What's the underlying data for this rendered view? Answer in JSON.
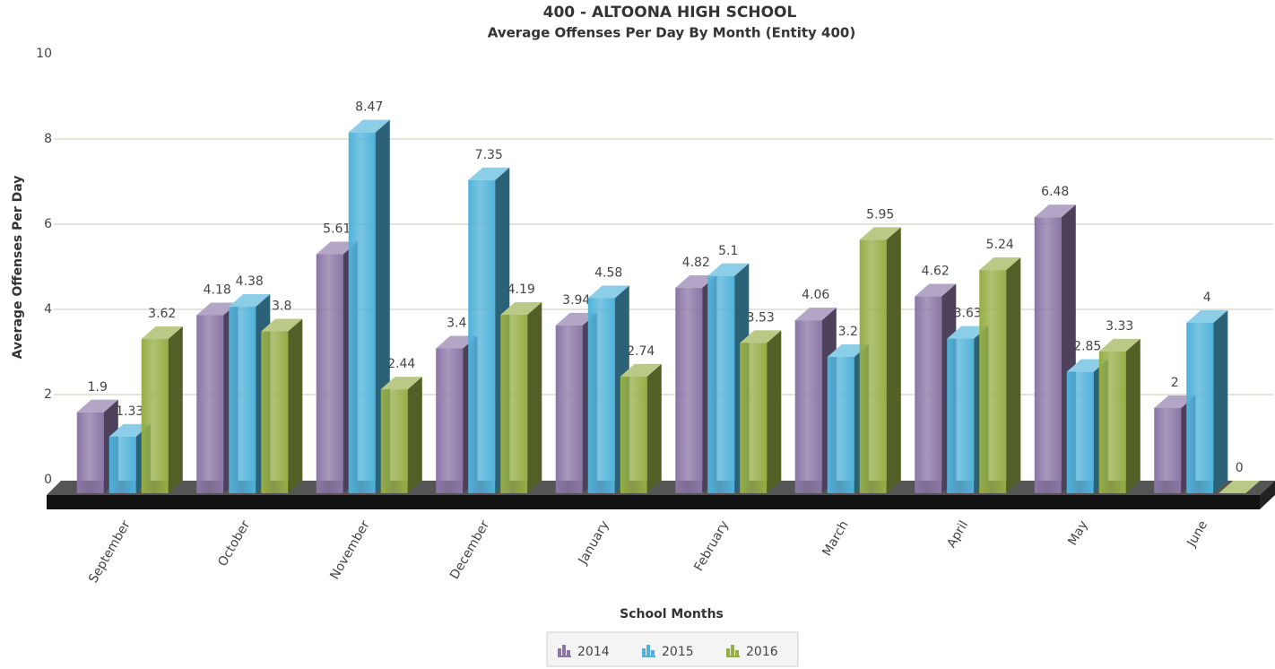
{
  "chart_data": {
    "type": "bar3d",
    "title": "400 - ALTOONA HIGH SCHOOL",
    "subtitle": "Average Offenses Per Day By Month (Entity 400)",
    "x_label": "School Months",
    "y_label": "Average Offenses Per Day",
    "categories": [
      "September",
      "October",
      "November",
      "December",
      "January",
      "February",
      "March",
      "April",
      "May",
      "June"
    ],
    "series": [
      {
        "name": "2014",
        "color": "#8a76a6",
        "values": [
          1.9,
          4.18,
          5.61,
          3.4,
          3.94,
          4.82,
          4.06,
          4.62,
          6.48,
          2
        ]
      },
      {
        "name": "2015",
        "color": "#4fb2da",
        "values": [
          1.33,
          4.38,
          8.47,
          7.35,
          4.58,
          5.1,
          3.2,
          3.63,
          2.85,
          4
        ]
      },
      {
        "name": "2016",
        "color": "#96ad45",
        "values": [
          3.62,
          3.8,
          2.44,
          4.19,
          2.74,
          3.53,
          5.95,
          5.24,
          3.33,
          0
        ]
      }
    ],
    "ylim": [
      0,
      10
    ],
    "yticks": [
      0,
      2,
      4,
      6,
      8,
      10
    ],
    "grid": true,
    "legend": "bottom"
  }
}
